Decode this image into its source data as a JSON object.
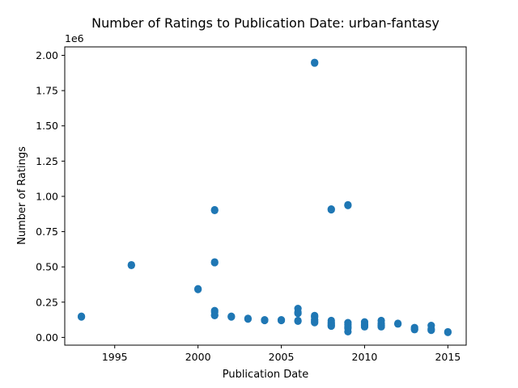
{
  "chart_data": {
    "type": "scatter",
    "title": "Number of Ratings to Publication Date: urban-fantasy",
    "xlabel": "Publication Date",
    "ylabel": "Number of Ratings",
    "y_offset_label": "1e6",
    "xlim": [
      1992.0,
      2016.1
    ],
    "ylim": [
      -0.055,
      2.06
    ],
    "x_ticks": [
      1995,
      2000,
      2005,
      2010,
      2015
    ],
    "x_tick_labels": [
      "1995",
      "2000",
      "2005",
      "2010",
      "2015"
    ],
    "y_ticks": [
      0,
      0.25,
      0.5,
      0.75,
      1.0,
      1.25,
      1.5,
      1.75,
      2.0
    ],
    "y_tick_labels": [
      "0.00",
      "0.25",
      "0.50",
      "0.75",
      "1.00",
      "1.25",
      "1.50",
      "1.75",
      "2.00"
    ],
    "grid": false,
    "marker_color": "#1f77b4",
    "series": [
      {
        "points": [
          [
            1993,
            0.145
          ],
          [
            1993,
            0.15
          ],
          [
            1996,
            0.51
          ],
          [
            1996,
            0.515
          ],
          [
            2000,
            0.34
          ],
          [
            2000,
            0.345
          ],
          [
            2001,
            0.905
          ],
          [
            2001,
            0.9
          ],
          [
            2001,
            0.535
          ],
          [
            2001,
            0.53
          ],
          [
            2001,
            0.19
          ],
          [
            2001,
            0.18
          ],
          [
            2001,
            0.16
          ],
          [
            2001,
            0.155
          ],
          [
            2002,
            0.145
          ],
          [
            2002,
            0.15
          ],
          [
            2003,
            0.135
          ],
          [
            2003,
            0.13
          ],
          [
            2004,
            0.12
          ],
          [
            2004,
            0.125
          ],
          [
            2005,
            0.12
          ],
          [
            2005,
            0.125
          ],
          [
            2006,
            0.205
          ],
          [
            2006,
            0.18
          ],
          [
            2006,
            0.17
          ],
          [
            2006,
            0.12
          ],
          [
            2006,
            0.115
          ],
          [
            2007,
            1.95
          ],
          [
            2007,
            1.945
          ],
          [
            2007,
            0.155
          ],
          [
            2007,
            0.145
          ],
          [
            2007,
            0.125
          ],
          [
            2007,
            0.115
          ],
          [
            2007,
            0.105
          ],
          [
            2008,
            0.91
          ],
          [
            2008,
            0.905
          ],
          [
            2008,
            0.12
          ],
          [
            2008,
            0.105
          ],
          [
            2008,
            0.095
          ],
          [
            2008,
            0.085
          ],
          [
            2008,
            0.08
          ],
          [
            2009,
            0.935
          ],
          [
            2009,
            0.94
          ],
          [
            2009,
            0.105
          ],
          [
            2009,
            0.09
          ],
          [
            2009,
            0.075
          ],
          [
            2009,
            0.065
          ],
          [
            2009,
            0.04
          ],
          [
            2010,
            0.11
          ],
          [
            2010,
            0.095
          ],
          [
            2010,
            0.085
          ],
          [
            2010,
            0.075
          ],
          [
            2011,
            0.12
          ],
          [
            2011,
            0.1
          ],
          [
            2011,
            0.085
          ],
          [
            2011,
            0.075
          ],
          [
            2012,
            0.1
          ],
          [
            2012,
            0.095
          ],
          [
            2013,
            0.07
          ],
          [
            2013,
            0.06
          ],
          [
            2013,
            0.055
          ],
          [
            2014,
            0.085
          ],
          [
            2014,
            0.06
          ],
          [
            2014,
            0.05
          ],
          [
            2015,
            0.04
          ],
          [
            2015,
            0.035
          ]
        ]
      }
    ]
  }
}
